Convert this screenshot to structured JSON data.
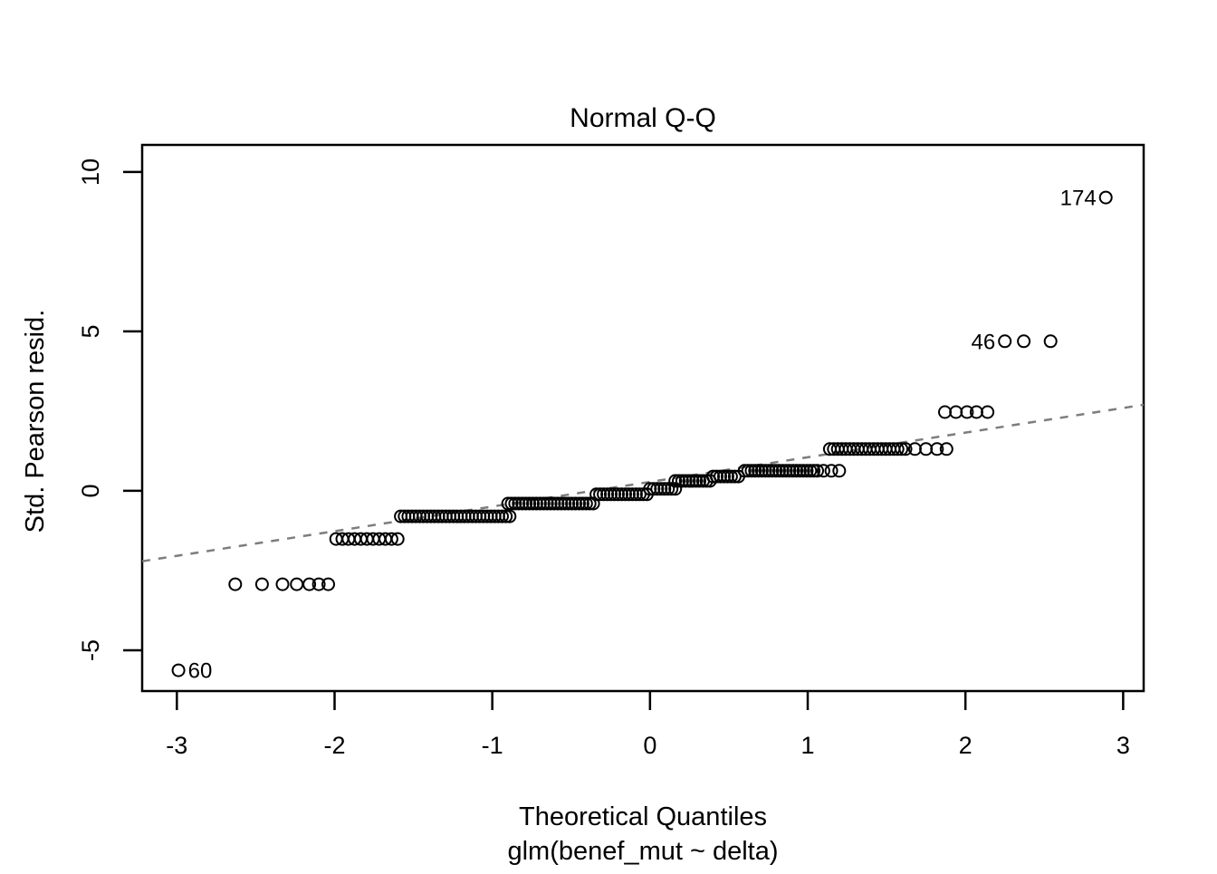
{
  "chart_data": {
    "type": "scatter",
    "title": "Normal Q-Q",
    "xlabel": "Theoretical Quantiles",
    "sublabel": "glm(benef_mut ~ delta)",
    "ylabel": "Std. Pearson resid.",
    "xlim": [
      -3.22,
      3.13
    ],
    "ylim": [
      -6.28,
      10.85
    ],
    "x_ticks": [
      -3,
      -2,
      -1,
      0,
      1,
      2,
      3
    ],
    "y_ticks": [
      -5,
      0,
      5,
      10
    ],
    "grid": false,
    "legend": null,
    "point_style": {
      "shape": "open-circle",
      "color": "#000000",
      "radius_px": 6.5,
      "stroke_px": 2
    },
    "reference_line": {
      "style": "dashed",
      "color": "#7d7d7d",
      "intercept": 0.28,
      "slope": 0.773
    },
    "bands": [
      {
        "y": -5.63,
        "xs": [
          -2.99
        ],
        "label": "60",
        "label_side": "right"
      },
      {
        "y": -2.93,
        "xs": [
          -2.63,
          -2.46,
          -2.33,
          -2.24,
          -2.16,
          -2.1,
          -2.04
        ]
      },
      {
        "y": -1.51,
        "from": -1.99,
        "to": -1.6,
        "n": 11
      },
      {
        "y": -0.8,
        "from": -1.58,
        "to": -0.89,
        "n": 30
      },
      {
        "y": -0.4,
        "from": -0.9,
        "to": -0.36,
        "n": 25
      },
      {
        "y": -0.11,
        "from": -0.34,
        "to": -0.02,
        "n": 15
      },
      {
        "y": 0.06,
        "from": 0.0,
        "to": 0.16,
        "n": 8
      },
      {
        "y": 0.31,
        "from": 0.16,
        "to": 0.38,
        "n": 11
      },
      {
        "y": 0.45,
        "from": 0.4,
        "to": 0.56,
        "n": 8
      },
      {
        "y": 0.63,
        "from": 0.6,
        "to": 1.06,
        "n": 22
      },
      {
        "y": 0.63,
        "xs": [
          1.1,
          1.15,
          1.2
        ]
      },
      {
        "y": 1.31,
        "from": 1.14,
        "to": 1.62,
        "n": 20
      },
      {
        "y": 1.31,
        "xs": [
          1.68,
          1.75,
          1.82,
          1.88
        ]
      },
      {
        "y": 2.47,
        "xs": [
          1.87,
          1.94,
          2.01,
          2.07,
          2.14
        ]
      },
      {
        "y": 4.69,
        "xs": [
          2.25,
          2.37,
          2.54
        ],
        "label": "46",
        "label_side": "left"
      },
      {
        "y": 9.2,
        "xs": [
          2.89
        ],
        "label": "174",
        "label_side": "left"
      }
    ]
  }
}
